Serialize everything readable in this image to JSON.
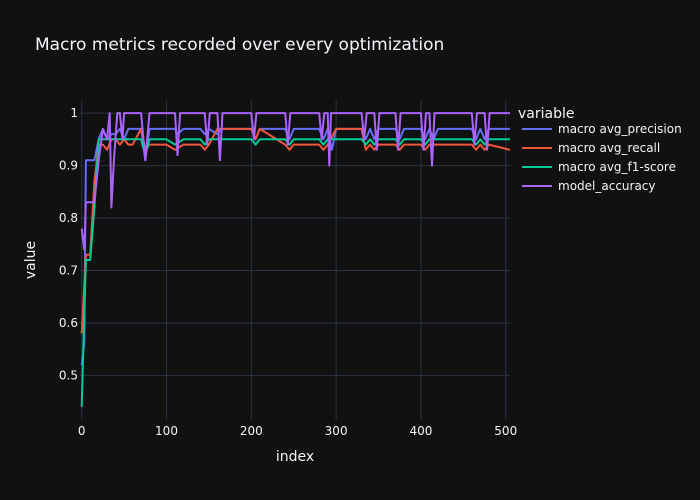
{
  "chart_data": {
    "type": "line",
    "title": "Macro metrics recorded over every optimization",
    "xlabel": "index",
    "ylabel": "value",
    "xlim": [
      -2,
      505
    ],
    "ylim": [
      0.415,
      1.025
    ],
    "xticks": [
      0,
      100,
      200,
      300,
      400,
      500
    ],
    "yticks": [
      0.5,
      0.6,
      0.7,
      0.8,
      0.9,
      1
    ],
    "ytick_labels": [
      "0.5",
      "0.6",
      "0.7",
      "0.8",
      "0.9",
      "1"
    ],
    "grid": true,
    "legend_title": "variable",
    "legend_position": "right",
    "series": [
      {
        "name": "macro avg_precision",
        "color": "#636efa",
        "points": [
          [
            0,
            0.52
          ],
          [
            3,
            0.56
          ],
          [
            5,
            0.91
          ],
          [
            8,
            0.91
          ],
          [
            10,
            0.91
          ],
          [
            15,
            0.91
          ],
          [
            20,
            0.95
          ],
          [
            25,
            0.97
          ],
          [
            30,
            0.95
          ],
          [
            35,
            0.96
          ],
          [
            40,
            0.96
          ],
          [
            45,
            0.97
          ],
          [
            50,
            0.95
          ],
          [
            55,
            0.97
          ],
          [
            60,
            0.97
          ],
          [
            70,
            0.97
          ],
          [
            75,
            0.91
          ],
          [
            80,
            0.97
          ],
          [
            100,
            0.97
          ],
          [
            110,
            0.97
          ],
          [
            113,
            0.96
          ],
          [
            120,
            0.97
          ],
          [
            140,
            0.97
          ],
          [
            145,
            0.96
          ],
          [
            150,
            0.97
          ],
          [
            160,
            0.96
          ],
          [
            165,
            0.97
          ],
          [
            200,
            0.97
          ],
          [
            205,
            0.95
          ],
          [
            210,
            0.97
          ],
          [
            240,
            0.97
          ],
          [
            245,
            0.95
          ],
          [
            250,
            0.97
          ],
          [
            280,
            0.97
          ],
          [
            285,
            0.95
          ],
          [
            290,
            0.97
          ],
          [
            295,
            0.93
          ],
          [
            300,
            0.97
          ],
          [
            330,
            0.97
          ],
          [
            335,
            0.95
          ],
          [
            340,
            0.97
          ],
          [
            345,
            0.95
          ],
          [
            350,
            0.97
          ],
          [
            370,
            0.97
          ],
          [
            375,
            0.95
          ],
          [
            380,
            0.97
          ],
          [
            400,
            0.97
          ],
          [
            405,
            0.95
          ],
          [
            410,
            0.97
          ],
          [
            415,
            0.95
          ],
          [
            420,
            0.97
          ],
          [
            460,
            0.97
          ],
          [
            465,
            0.95
          ],
          [
            470,
            0.97
          ],
          [
            475,
            0.95
          ],
          [
            480,
            0.97
          ],
          [
            505,
            0.97
          ]
        ]
      },
      {
        "name": "macro avg_recall",
        "color": "#ef553b",
        "points": [
          [
            0,
            0.58
          ],
          [
            3,
            0.67
          ],
          [
            5,
            0.73
          ],
          [
            10,
            0.73
          ],
          [
            15,
            0.87
          ],
          [
            20,
            0.94
          ],
          [
            25,
            0.94
          ],
          [
            30,
            0.93
          ],
          [
            35,
            0.95
          ],
          [
            40,
            0.95
          ],
          [
            45,
            0.94
          ],
          [
            50,
            0.95
          ],
          [
            55,
            0.94
          ],
          [
            60,
            0.94
          ],
          [
            70,
            0.97
          ],
          [
            75,
            0.93
          ],
          [
            80,
            0.94
          ],
          [
            100,
            0.94
          ],
          [
            110,
            0.93
          ],
          [
            120,
            0.94
          ],
          [
            140,
            0.94
          ],
          [
            145,
            0.93
          ],
          [
            150,
            0.94
          ],
          [
            160,
            0.97
          ],
          [
            165,
            0.97
          ],
          [
            200,
            0.97
          ],
          [
            205,
            0.95
          ],
          [
            210,
            0.97
          ],
          [
            240,
            0.94
          ],
          [
            245,
            0.93
          ],
          [
            250,
            0.94
          ],
          [
            280,
            0.94
          ],
          [
            285,
            0.93
          ],
          [
            290,
            0.94
          ],
          [
            300,
            0.97
          ],
          [
            330,
            0.97
          ],
          [
            335,
            0.93
          ],
          [
            340,
            0.94
          ],
          [
            345,
            0.93
          ],
          [
            350,
            0.94
          ],
          [
            370,
            0.94
          ],
          [
            375,
            0.93
          ],
          [
            380,
            0.94
          ],
          [
            400,
            0.94
          ],
          [
            405,
            0.93
          ],
          [
            410,
            0.94
          ],
          [
            460,
            0.94
          ],
          [
            465,
            0.93
          ],
          [
            470,
            0.94
          ],
          [
            475,
            0.93
          ],
          [
            480,
            0.94
          ],
          [
            505,
            0.93
          ]
        ]
      },
      {
        "name": "macro avg_f1-score",
        "color": "#00cc96",
        "points": [
          [
            0,
            0.44
          ],
          [
            3,
            0.61
          ],
          [
            5,
            0.72
          ],
          [
            10,
            0.72
          ],
          [
            15,
            0.82
          ],
          [
            20,
            0.95
          ],
          [
            25,
            0.95
          ],
          [
            30,
            0.95
          ],
          [
            35,
            0.95
          ],
          [
            40,
            0.95
          ],
          [
            45,
            0.95
          ],
          [
            50,
            0.95
          ],
          [
            55,
            0.95
          ],
          [
            60,
            0.95
          ],
          [
            70,
            0.95
          ],
          [
            75,
            0.92
          ],
          [
            80,
            0.95
          ],
          [
            100,
            0.95
          ],
          [
            110,
            0.94
          ],
          [
            120,
            0.95
          ],
          [
            140,
            0.95
          ],
          [
            145,
            0.94
          ],
          [
            150,
            0.95
          ],
          [
            160,
            0.95
          ],
          [
            165,
            0.95
          ],
          [
            200,
            0.95
          ],
          [
            205,
            0.94
          ],
          [
            210,
            0.95
          ],
          [
            240,
            0.95
          ],
          [
            245,
            0.94
          ],
          [
            250,
            0.95
          ],
          [
            280,
            0.95
          ],
          [
            285,
            0.94
          ],
          [
            290,
            0.95
          ],
          [
            300,
            0.95
          ],
          [
            330,
            0.95
          ],
          [
            335,
            0.94
          ],
          [
            340,
            0.95
          ],
          [
            345,
            0.94
          ],
          [
            350,
            0.95
          ],
          [
            370,
            0.95
          ],
          [
            375,
            0.94
          ],
          [
            380,
            0.95
          ],
          [
            400,
            0.95
          ],
          [
            405,
            0.94
          ],
          [
            410,
            0.95
          ],
          [
            460,
            0.95
          ],
          [
            465,
            0.94
          ],
          [
            470,
            0.95
          ],
          [
            475,
            0.94
          ],
          [
            480,
            0.95
          ],
          [
            505,
            0.95
          ]
        ]
      },
      {
        "name": "model_accuracy",
        "color": "#ab63fa",
        "points": [
          [
            0,
            0.78
          ],
          [
            3,
            0.74
          ],
          [
            5,
            0.83
          ],
          [
            10,
            0.83
          ],
          [
            15,
            0.83
          ],
          [
            20,
            0.91
          ],
          [
            25,
            0.97
          ],
          [
            30,
            0.95
          ],
          [
            33,
            1.0
          ],
          [
            35,
            0.82
          ],
          [
            38,
            0.91
          ],
          [
            42,
            1.0
          ],
          [
            45,
            1.0
          ],
          [
            48,
            0.95
          ],
          [
            50,
            1.0
          ],
          [
            70,
            1.0
          ],
          [
            75,
            0.91
          ],
          [
            80,
            1.0
          ],
          [
            110,
            1.0
          ],
          [
            113,
            0.92
          ],
          [
            116,
            1.0
          ],
          [
            145,
            1.0
          ],
          [
            148,
            0.94
          ],
          [
            151,
            1.0
          ],
          [
            160,
            1.0
          ],
          [
            163,
            0.91
          ],
          [
            166,
            1.0
          ],
          [
            200,
            1.0
          ],
          [
            203,
            0.95
          ],
          [
            206,
            1.0
          ],
          [
            240,
            1.0
          ],
          [
            243,
            0.94
          ],
          [
            246,
            1.0
          ],
          [
            280,
            1.0
          ],
          [
            283,
            0.95
          ],
          [
            286,
            1.0
          ],
          [
            290,
            1.0
          ],
          [
            292,
            0.9
          ],
          [
            294,
            1.0
          ],
          [
            330,
            1.0
          ],
          [
            333,
            0.95
          ],
          [
            336,
            1.0
          ],
          [
            345,
            1.0
          ],
          [
            348,
            0.93
          ],
          [
            351,
            1.0
          ],
          [
            370,
            1.0
          ],
          [
            373,
            0.93
          ],
          [
            376,
            1.0
          ],
          [
            400,
            1.0
          ],
          [
            403,
            0.93
          ],
          [
            406,
            1.0
          ],
          [
            410,
            1.0
          ],
          [
            413,
            0.9
          ],
          [
            416,
            1.0
          ],
          [
            460,
            1.0
          ],
          [
            463,
            0.94
          ],
          [
            466,
            1.0
          ],
          [
            475,
            1.0
          ],
          [
            478,
            0.93
          ],
          [
            481,
            1.0
          ],
          [
            505,
            1.0
          ]
        ]
      }
    ]
  }
}
